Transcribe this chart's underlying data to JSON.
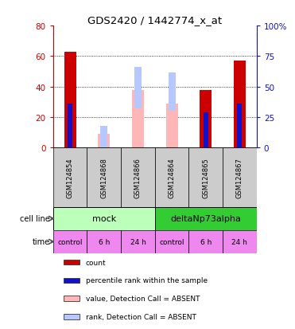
{
  "title": "GDS2420 / 1442774_x_at",
  "samples": [
    "GSM124854",
    "GSM124868",
    "GSM124866",
    "GSM124864",
    "GSM124865",
    "GSM124867"
  ],
  "count_values": [
    63,
    0,
    0,
    0,
    38,
    57
  ],
  "rank_values": [
    36,
    0,
    0,
    0,
    29,
    36
  ],
  "absent_value_values": [
    0,
    9,
    38,
    29,
    0,
    0
  ],
  "absent_rank_values": [
    0,
    14,
    27,
    25,
    0,
    0
  ],
  "absent_rank_bottom": [
    0,
    0,
    26,
    24,
    0,
    0
  ],
  "left_ylim": [
    0,
    80
  ],
  "right_ylim": [
    0,
    100
  ],
  "left_yticks": [
    0,
    20,
    40,
    60,
    80
  ],
  "right_yticks": [
    0,
    25,
    50,
    75,
    100
  ],
  "right_yticklabels": [
    "0",
    "25",
    "50",
    "75",
    "100%"
  ],
  "left_yticklabels": [
    "0",
    "20",
    "40",
    "60",
    "80"
  ],
  "cell_line_mock_label": "mock",
  "cell_line_delta_label": "deltaNp73alpha",
  "time_labels": [
    "control",
    "6 h",
    "24 h",
    "control",
    "6 h",
    "24 h"
  ],
  "color_count": "#cc0000",
  "color_rank": "#1111cc",
  "color_absent_value": "#ffb6b6",
  "color_absent_rank": "#b6c8ff",
  "color_mock_light": "#bbffbb",
  "color_delta_green": "#33cc33",
  "color_time_bg": "#ee88ee",
  "color_sample_bg": "#cccccc",
  "bar_width": 0.35,
  "legend_items": [
    [
      "#cc0000",
      "count"
    ],
    [
      "#1111cc",
      "percentile rank within the sample"
    ],
    [
      "#ffb6b6",
      "value, Detection Call = ABSENT"
    ],
    [
      "#b6c8ff",
      "rank, Detection Call = ABSENT"
    ]
  ]
}
